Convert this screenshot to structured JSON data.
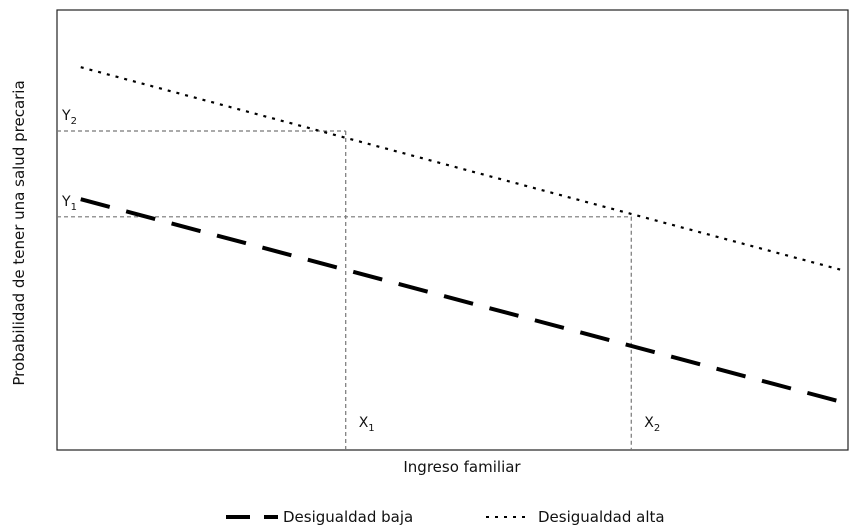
{
  "chart_data": {
    "type": "line",
    "xlabel": "Ingreso familiar",
    "ylabel": "Probabilidad de tener una salud precaria",
    "xlim": [
      0,
      100
    ],
    "ylim": [
      0,
      100
    ],
    "grid": false,
    "legend_position": "bottom",
    "series": [
      {
        "name": "Desigualdad baja",
        "style": "long-dash",
        "stroke_width": "thick",
        "color": "#000000",
        "x": [
          3,
          99
        ],
        "y": [
          57,
          11
        ]
      },
      {
        "name": "Desigualdad alta",
        "style": "dotted",
        "color": "#000000",
        "x": [
          3,
          99
        ],
        "y": [
          87,
          41
        ]
      }
    ],
    "annotations": {
      "reference_color": "#777777",
      "x_marks": [
        {
          "label": "X",
          "subscript": "1",
          "x": 36.5
        },
        {
          "label": "X",
          "subscript": "2",
          "x": 72.6
        }
      ],
      "y_marks": [
        {
          "label": "Y",
          "subscript": "2",
          "y": 72.5
        },
        {
          "label": "Y",
          "subscript": "1",
          "y": 53
        }
      ],
      "reference_points": [
        {
          "x": 36.5,
          "y": 72.5
        },
        {
          "x": 72.6,
          "y": 53
        }
      ]
    }
  }
}
